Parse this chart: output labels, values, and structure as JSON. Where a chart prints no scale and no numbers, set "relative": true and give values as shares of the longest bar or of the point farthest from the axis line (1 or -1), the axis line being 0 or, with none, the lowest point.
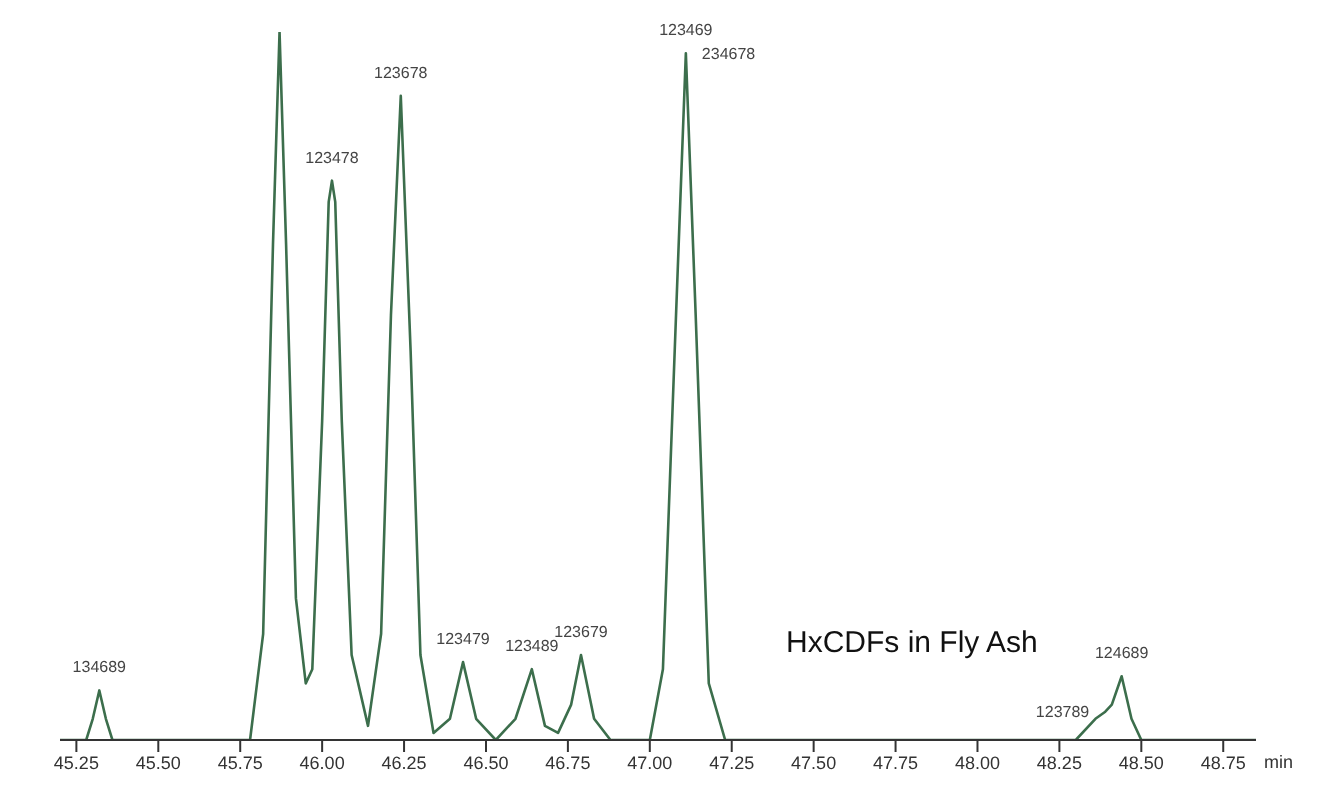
{
  "chart_data": {
    "type": "line",
    "relative": true,
    "title": "HxCDFs in Fly Ash",
    "xlabel": "min",
    "xlim": [
      45.2,
      48.85
    ],
    "xticks": [
      45.25,
      {
        "value": 45.5,
        "label": "45.50"
      },
      45.75,
      {
        "value": 46,
        "label": "46.00"
      },
      46.25,
      {
        "value": 46.5,
        "label": "46.50"
      },
      46.75,
      {
        "value": 47,
        "label": "47.00"
      },
      47.25,
      {
        "value": 47.5,
        "label": "47.50"
      },
      47.75,
      {
        "value": 48,
        "label": "48.00"
      },
      48.25,
      {
        "value": 48.5,
        "label": "48.50"
      },
      48.75
    ],
    "series": [
      {
        "color": "#3c6e4c",
        "x": [
          45.2,
          45.28,
          45.3,
          45.32,
          45.34,
          45.36,
          45.78,
          45.82,
          45.85,
          45.87,
          45.89,
          45.92,
          45.95,
          45.97,
          46.0,
          46.02,
          46.03,
          46.04,
          46.06,
          46.09,
          46.14,
          46.18,
          46.21,
          46.24,
          46.27,
          46.3,
          46.34,
          46.39,
          46.43,
          46.47,
          46.53,
          46.59,
          46.64,
          46.68,
          46.72,
          46.76,
          46.79,
          46.83,
          46.88,
          47.0,
          47.04,
          47.08,
          47.11,
          47.14,
          47.18,
          47.23,
          48.3,
          48.36,
          48.39,
          48.41,
          48.44,
          48.47,
          48.5,
          48.85
        ],
        "values": [
          0,
          0,
          0.03,
          0.07,
          0.03,
          0,
          0,
          0.15,
          0.7,
          1,
          0.7,
          0.2,
          0.08,
          0.1,
          0.45,
          0.76,
          0.79,
          0.76,
          0.45,
          0.12,
          0.02,
          0.15,
          0.6,
          0.91,
          0.55,
          0.12,
          0.01,
          0.03,
          0.11,
          0.03,
          0,
          0.03,
          0.1,
          0.02,
          0.01,
          0.05,
          0.12,
          0.03,
          0,
          0,
          0.1,
          0.6,
          0.97,
          0.6,
          0.08,
          0,
          0,
          0.03,
          0.04,
          0.05,
          0.09,
          0.03,
          0,
          0
        ]
      }
    ],
    "annotations": [
      {
        "text": "134689",
        "x": 45.32,
        "y": 0.07
      },
      {
        "text": "123478",
        "x": 46.03,
        "y": 0.79
      },
      {
        "text": "123678",
        "x": 46.24,
        "y": 0.91
      },
      {
        "text": "123479",
        "x": 46.43,
        "y": 0.11
      },
      {
        "text": "123489",
        "x": 46.64,
        "y": 0.1
      },
      {
        "text": "123679",
        "x": 46.79,
        "y": 0.12
      },
      {
        "text": "123469",
        "x": 47.11,
        "y": 0.97
      },
      {
        "text": "234678",
        "x": 47.11,
        "y": 0.97
      },
      {
        "text": "123789",
        "x": 48.39,
        "y": 0.04
      },
      {
        "text": "124689",
        "x": 48.44,
        "y": 0.09
      }
    ]
  }
}
